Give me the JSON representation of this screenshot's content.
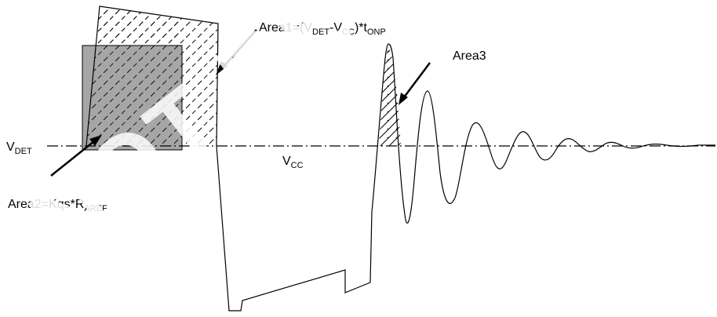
{
  "watermark": "NOT RECOMMENDED FOR NEW DESIGN",
  "labels": {
    "vdet": {
      "main": "V",
      "sub": "DET"
    },
    "vcc": {
      "main": "V",
      "sub": "CC"
    },
    "area1": {
      "p1": "Area1=(V",
      "s1": "DET",
      "p2": "-V",
      "s2": "CC",
      "p3": ")*t",
      "s3": "ONP"
    },
    "area2": {
      "main": "Area2=Kqs*R",
      "sub": "AREF"
    },
    "area3": "Area3"
  },
  "colors": {
    "stroke": "#000000",
    "area2_fill": "#a6a6a6",
    "background": "#ffffff"
  }
}
